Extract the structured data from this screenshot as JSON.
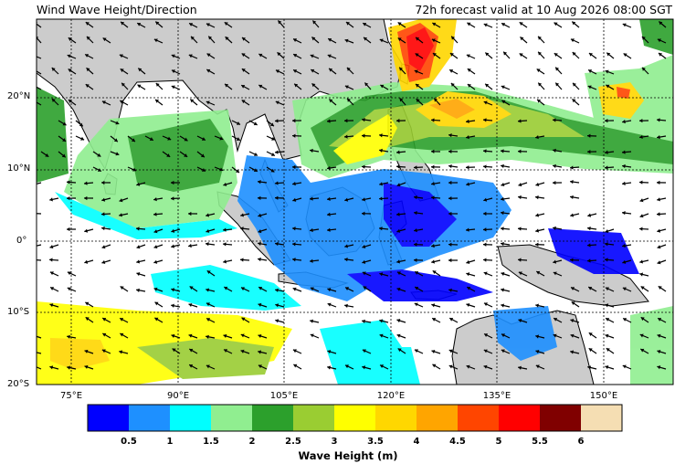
{
  "header": {
    "title": "Wind Wave Height/Direction",
    "forecast": "72h forecast valid at 10 Aug 2026 08:00 SGT"
  },
  "axes": {
    "lat_labels": [
      "20°N",
      "10°N",
      "0°",
      "10°S",
      "20°S"
    ],
    "lon_labels": [
      "75°E",
      "90°E",
      "105°E",
      "120°E",
      "135°E",
      "150°E"
    ],
    "lat_range": [
      -20,
      30
    ],
    "lon_range": [
      68,
      157
    ]
  },
  "colorbar": {
    "title": "Wave Height (m)",
    "ticks": [
      "0.5",
      "1",
      "1.5",
      "2",
      "2.5",
      "3",
      "3.5",
      "4",
      "4.5",
      "5",
      "5.5",
      "6"
    ],
    "colors": [
      "#0000ff",
      "#1e90ff",
      "#00ffff",
      "#90ee90",
      "#2ca02c",
      "#9acd32",
      "#ffff00",
      "#ffd700",
      "#ffa500",
      "#ff4500",
      "#ff0000",
      "#800000",
      "#f5deb3"
    ]
  },
  "colors": {
    "land": "#cccccc",
    "ocean": "#ffffff",
    "arrow": "#000000"
  }
}
